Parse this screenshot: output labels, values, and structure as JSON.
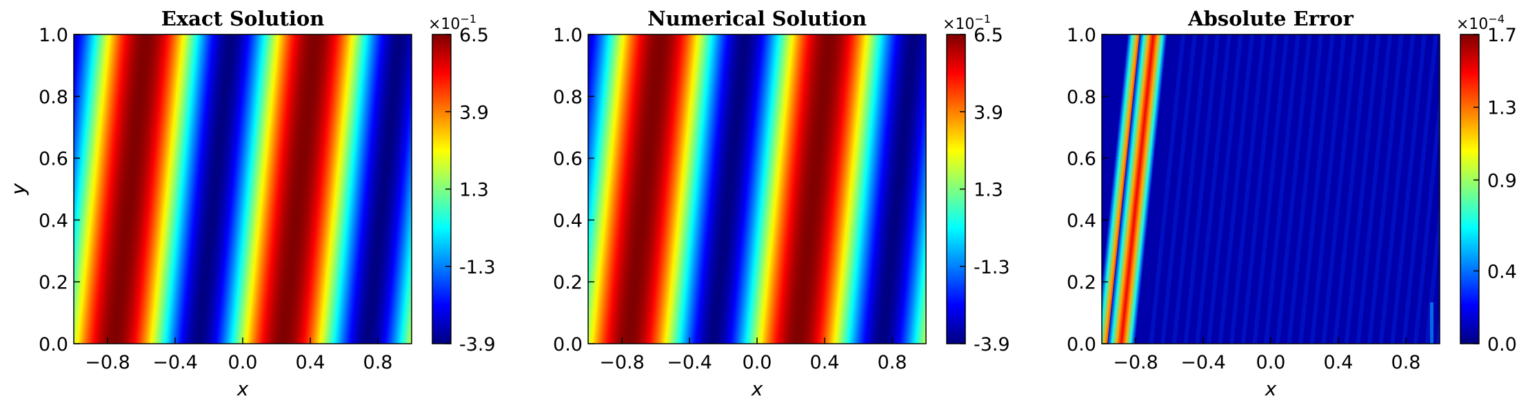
{
  "chart_data": [
    {
      "type": "heatmap",
      "title": "Exact Solution",
      "xlabel": "x",
      "ylabel": "y",
      "xlim": [
        -1.0,
        1.0
      ],
      "ylim": [
        0.0,
        1.0
      ],
      "xticks": [
        "−0.8",
        "−0.4",
        "0.0",
        "0.4",
        "0.8"
      ],
      "xtick_values": [
        -0.8,
        -0.4,
        0.0,
        0.4,
        0.8
      ],
      "yticks": [
        "0.0",
        "0.2",
        "0.4",
        "0.6",
        "0.8",
        "1.0"
      ],
      "ytick_values": [
        0.0,
        0.2,
        0.4,
        0.6,
        0.8,
        1.0
      ],
      "colormap": "jet",
      "colorbar": {
        "multiplier": "×10",
        "exponent": "−1",
        "min": -3.9,
        "max": 6.5,
        "ticks": [
          "-3.9",
          "-1.3",
          "1.3",
          "3.9",
          "6.5"
        ],
        "tick_values": [
          -3.9,
          -1.3,
          1.3,
          3.9,
          6.5
        ]
      },
      "grid": false,
      "pattern": {
        "kind": "traveling-wave",
        "wavelength_x": 1.0,
        "shift_x_per_y": 0.19,
        "crest_x_at_y0": [
          -0.76,
          0.24
        ],
        "crest_width": 0.25
      }
    },
    {
      "type": "heatmap",
      "title": "Numerical Solution",
      "xlabel": "x",
      "ylabel": "y",
      "xlim": [
        -1.0,
        1.0
      ],
      "ylim": [
        0.0,
        1.0
      ],
      "xticks": [
        "−0.8",
        "−0.4",
        "0.0",
        "0.4",
        "0.8"
      ],
      "xtick_values": [
        -0.8,
        -0.4,
        0.0,
        0.4,
        0.8
      ],
      "yticks": [
        "0.0",
        "0.2",
        "0.4",
        "0.6",
        "0.8",
        "1.0"
      ],
      "ytick_values": [
        0.0,
        0.2,
        0.4,
        0.6,
        0.8,
        1.0
      ],
      "colormap": "jet",
      "colorbar": {
        "multiplier": "×10",
        "exponent": "−1",
        "min": -3.9,
        "max": 6.5,
        "ticks": [
          "-3.9",
          "-1.3",
          "1.3",
          "3.9",
          "6.5"
        ],
        "tick_values": [
          -3.9,
          -1.3,
          1.3,
          3.9,
          6.5
        ]
      },
      "grid": false,
      "pattern": {
        "kind": "traveling-wave",
        "wavelength_x": 1.0,
        "shift_x_per_y": 0.19,
        "crest_x_at_y0": [
          -0.76,
          0.24
        ],
        "crest_width": 0.25
      }
    },
    {
      "type": "heatmap",
      "title": "Absolute Error",
      "xlabel": "x",
      "ylabel": "y",
      "xlim": [
        -1.0,
        1.0
      ],
      "ylim": [
        0.0,
        1.0
      ],
      "xticks": [
        "−0.8",
        "−0.4",
        "0.0",
        "0.4",
        "0.8"
      ],
      "xtick_values": [
        -0.8,
        -0.4,
        0.0,
        0.4,
        0.8
      ],
      "yticks": [
        "0.0",
        "0.2",
        "0.4",
        "0.6",
        "0.8",
        "1.0"
      ],
      "ytick_values": [
        0.0,
        0.2,
        0.4,
        0.6,
        0.8,
        1.0
      ],
      "colormap": "jet",
      "colorbar": {
        "multiplier": "×10",
        "exponent": "−4",
        "min": 0.0,
        "max": 1.7,
        "ticks": [
          "0.0",
          "0.4",
          "0.9",
          "1.3",
          "1.7"
        ],
        "tick_values": [
          0.0,
          0.4,
          0.9,
          1.3,
          1.7
        ]
      },
      "grid": false,
      "pattern": {
        "kind": "error-bands",
        "shift_x_per_y": 0.19,
        "band_centers_x_at_y0": [
          -0.955,
          -0.885
        ],
        "band_peak": 1.6,
        "background_level": 0.15
      }
    }
  ]
}
